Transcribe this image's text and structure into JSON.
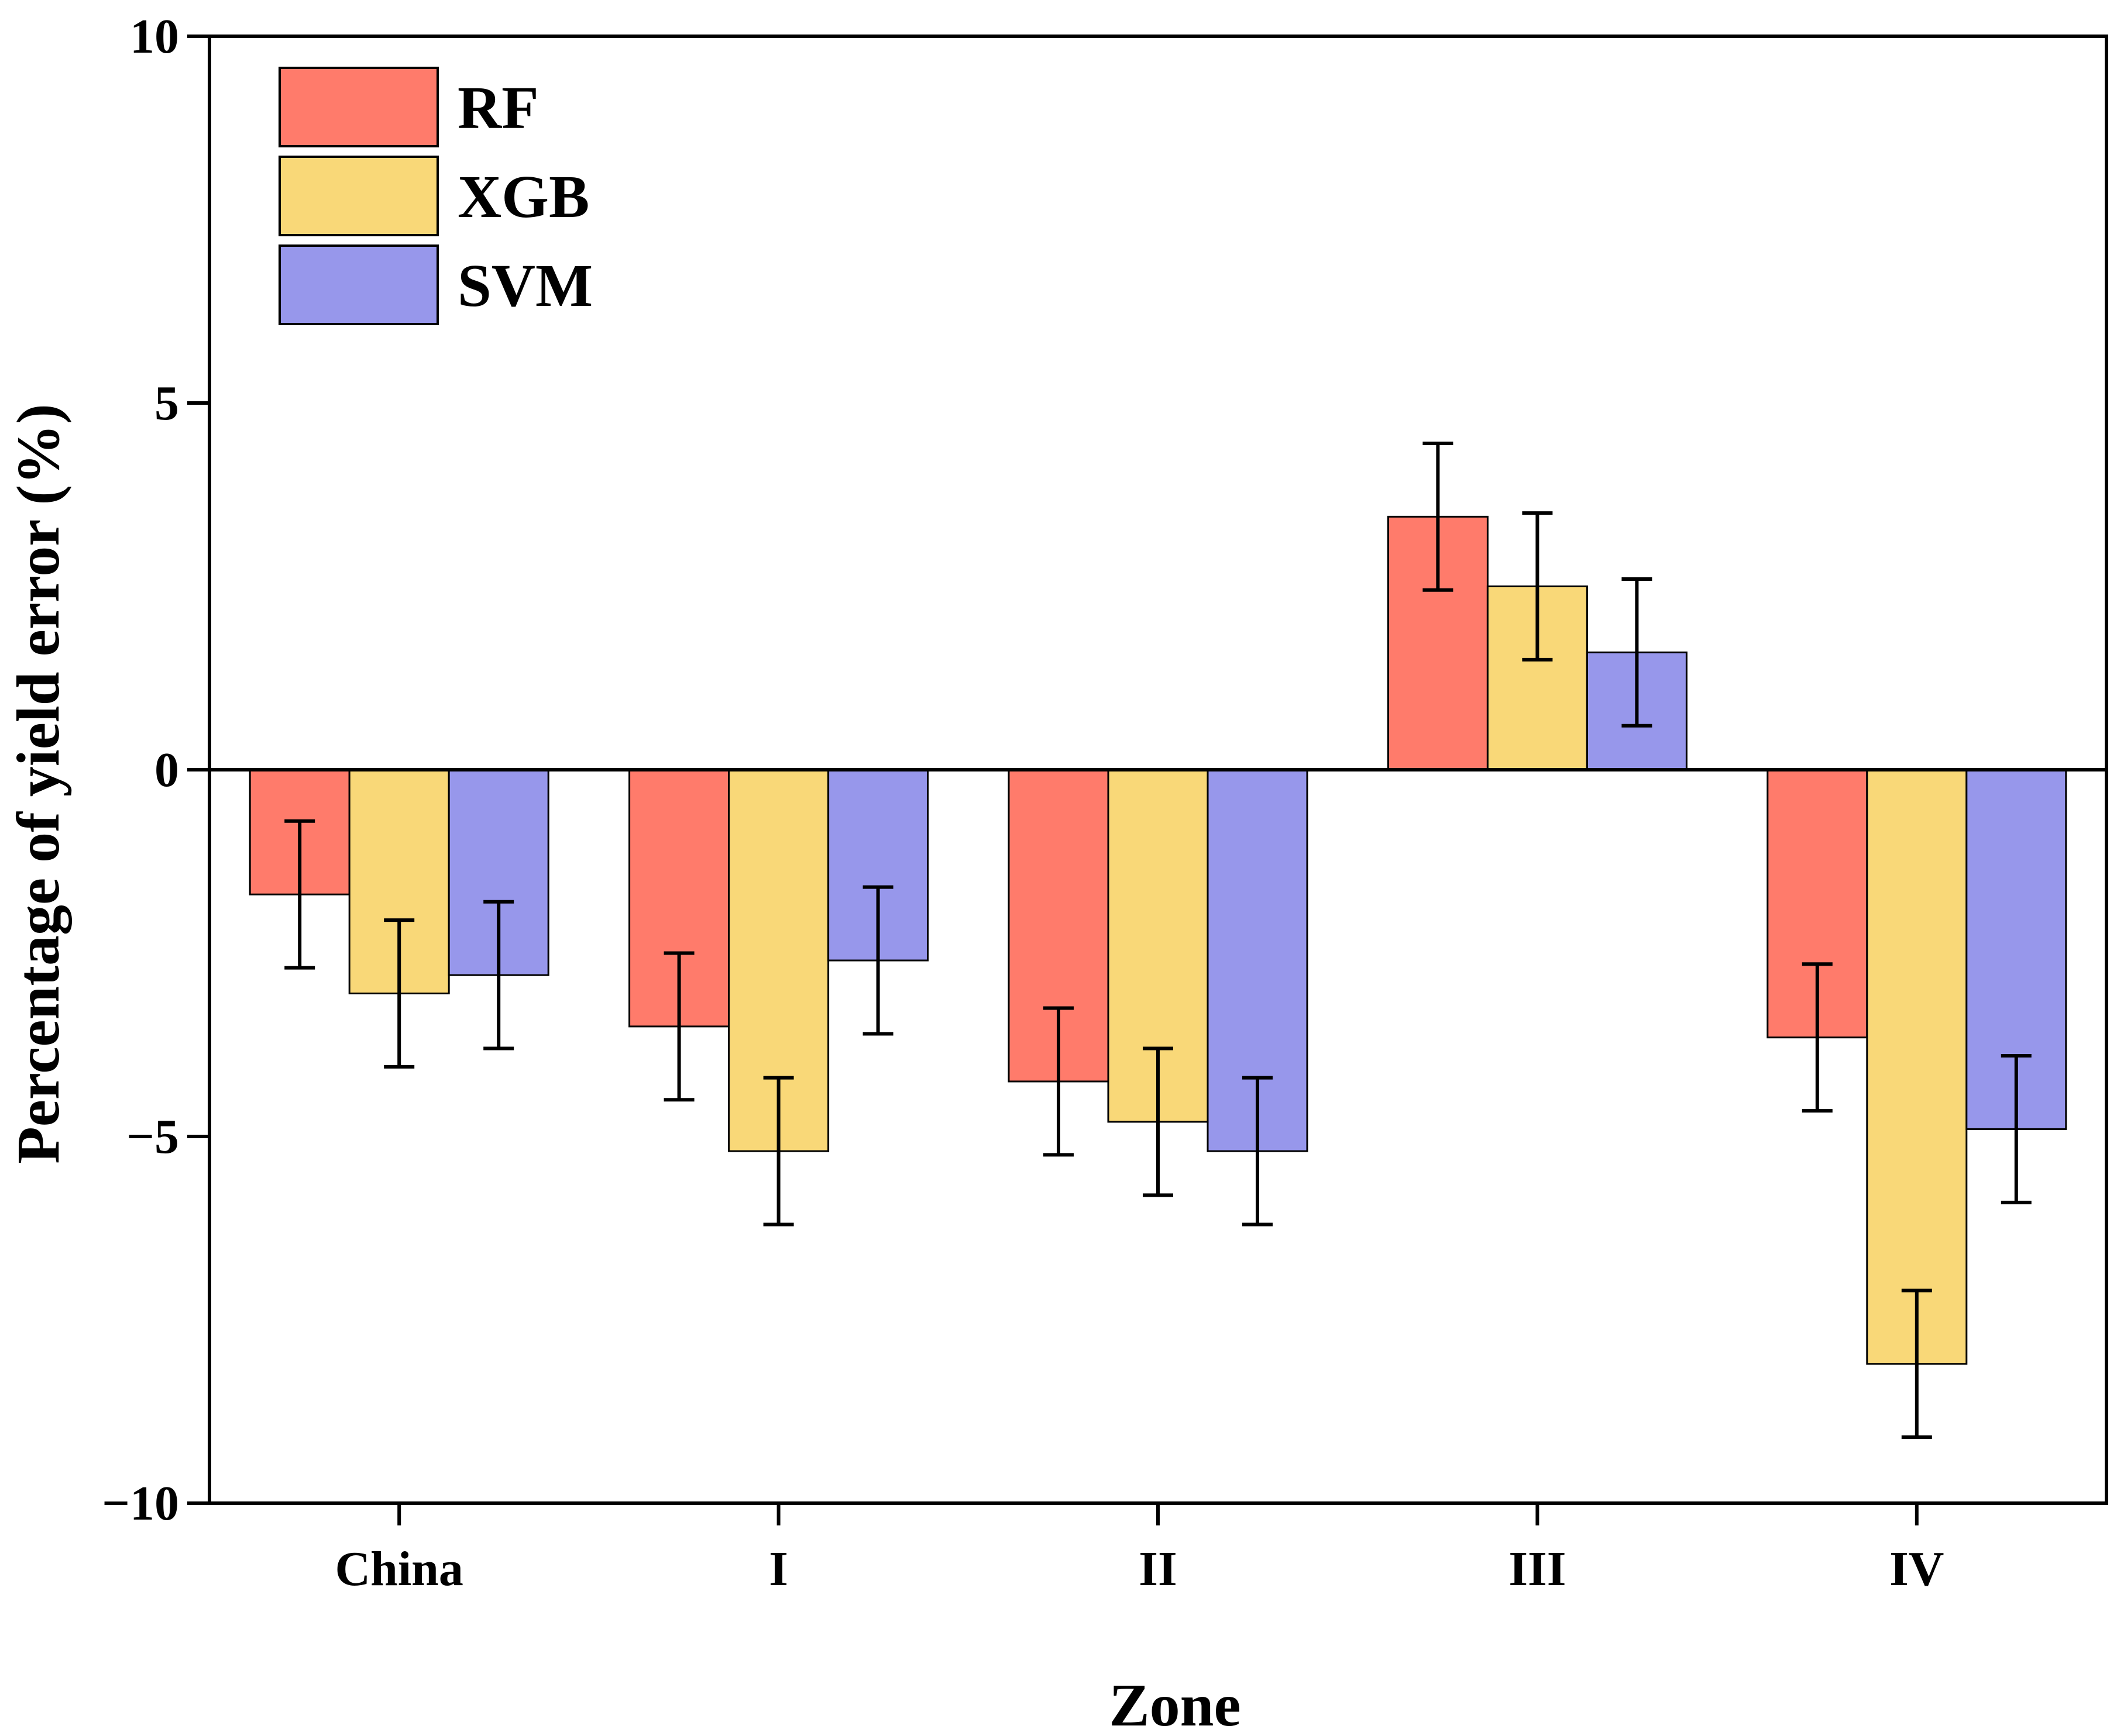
{
  "chart_data": {
    "type": "bar",
    "title": "",
    "xlabel": "Zone",
    "ylabel": "Percentage of yield error (%)",
    "categories": [
      "China",
      "I",
      "II",
      "III",
      "IV"
    ],
    "ylim": [
      -10,
      10
    ],
    "yticks": [
      10,
      5,
      0,
      -5,
      -10
    ],
    "ytick_labels": [
      "10",
      "5",
      "0",
      "−5",
      "−10"
    ],
    "grid": false,
    "legend_position": "top-left",
    "series": [
      {
        "name": "RF",
        "color": "#FF7B6B",
        "values": [
          -1.7,
          -3.5,
          -4.25,
          3.45,
          -3.65
        ],
        "errors": [
          1.0,
          1.0,
          1.0,
          1.0,
          1.0
        ]
      },
      {
        "name": "XGB",
        "color": "#F9D878",
        "values": [
          -3.05,
          -5.2,
          -4.8,
          2.5,
          -8.1
        ],
        "errors": [
          1.0,
          1.0,
          1.0,
          1.0,
          1.0
        ]
      },
      {
        "name": "SVM",
        "color": "#9797EB",
        "values": [
          -2.8,
          -2.6,
          -5.2,
          1.6,
          -4.9
        ],
        "errors": [
          1.0,
          1.0,
          1.0,
          1.0,
          1.0
        ]
      }
    ]
  }
}
